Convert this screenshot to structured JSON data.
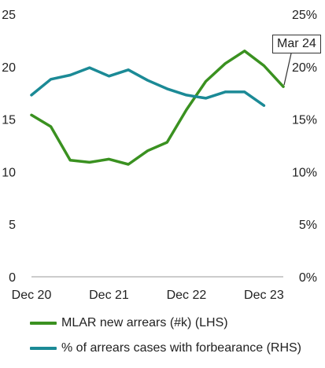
{
  "chart_data": {
    "type": "line",
    "x": [
      "Dec 20",
      "Mar 21",
      "Jun 21",
      "Sep 21",
      "Dec 21",
      "Mar 22",
      "Jun 22",
      "Sep 22",
      "Dec 22",
      "Mar 23",
      "Jun 23",
      "Sep 23",
      "Dec 23",
      "Mar 24"
    ],
    "x_tick_labels": [
      "Dec 20",
      "Dec 21",
      "Dec 22",
      "Dec 23"
    ],
    "y_left": {
      "ticks": [
        "0",
        "5",
        "10",
        "15",
        "20",
        "25"
      ],
      "ylim": [
        0,
        25
      ]
    },
    "y_right": {
      "ticks": [
        "0%",
        "5%",
        "10%",
        "15%",
        "20%",
        "25%"
      ],
      "ylim": [
        0,
        25
      ]
    },
    "series": [
      {
        "name": "MLAR new arrears (#k) (LHS)",
        "axis": "left",
        "color": "#3a9120",
        "values": [
          15.4,
          14.3,
          11.1,
          10.9,
          11.2,
          10.7,
          12.0,
          12.8,
          15.9,
          18.6,
          20.3,
          21.5,
          20.1,
          18.1
        ]
      },
      {
        "name": "% of arrears cases with forbearance (RHS)",
        "axis": "right",
        "color": "#1b8a96",
        "values": [
          17.3,
          18.8,
          19.2,
          19.9,
          19.1,
          19.7,
          18.7,
          17.9,
          17.3,
          17.0,
          17.6,
          17.6,
          16.3,
          null
        ]
      }
    ],
    "annotation": {
      "label": "Mar 24",
      "series_index": 0,
      "point_index": 13
    },
    "grid": false,
    "legend_position": "bottom"
  }
}
